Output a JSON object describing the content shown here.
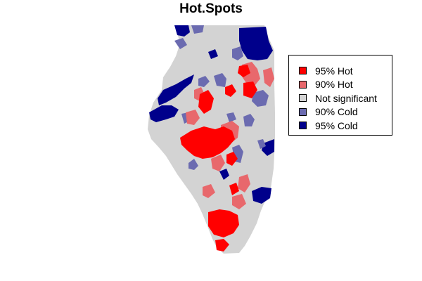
{
  "title": "Hot.Spots",
  "colors": {
    "hot95": "#ff0000",
    "hot90": "#e8686c",
    "not_significant": "#d3d3d3",
    "cold90": "#6b6bb0",
    "cold95": "#00008b"
  },
  "legend": {
    "items": [
      {
        "label": "95% Hot",
        "color": "#ff0000",
        "icon": "square-swatch"
      },
      {
        "label": "90% Hot",
        "color": "#e8686c",
        "icon": "square-swatch"
      },
      {
        "label": "Not significant",
        "color": "#d3d3d3",
        "icon": "square-swatch"
      },
      {
        "label": "90% Cold",
        "color": "#6b6bb0",
        "icon": "square-swatch"
      },
      {
        "label": "95% Cold",
        "color": "#00008b",
        "icon": "square-swatch"
      }
    ]
  },
  "map": {
    "region": "Illinois",
    "classes": [
      "95% Hot",
      "90% Hot",
      "Not significant",
      "90% Cold",
      "95% Cold"
    ]
  }
}
